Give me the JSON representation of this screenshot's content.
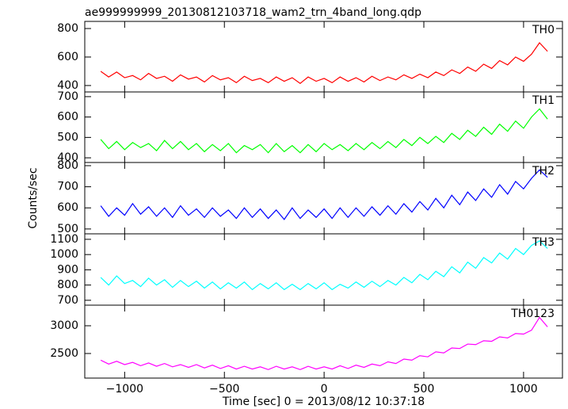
{
  "chart_data": [
    {
      "type": "line",
      "title": "ae999999999_20130812103718_wam2_trn_4band_long.qdp",
      "x": [
        -1120,
        -1080,
        -1040,
        -1000,
        -960,
        -920,
        -880,
        -840,
        -800,
        -760,
        -720,
        -680,
        -640,
        -600,
        -560,
        -520,
        -480,
        -440,
        -400,
        -360,
        -320,
        -280,
        -240,
        -200,
        -160,
        -120,
        -80,
        -40,
        0,
        40,
        80,
        120,
        160,
        200,
        240,
        280,
        320,
        360,
        400,
        440,
        480,
        520,
        560,
        600,
        640,
        680,
        720,
        760,
        800,
        840,
        880,
        920,
        960,
        1000,
        1040,
        1080,
        1120
      ],
      "series": [
        {
          "name": "TH0",
          "color": "#ff0000",
          "values": [
            500,
            460,
            495,
            455,
            470,
            440,
            485,
            450,
            465,
            430,
            475,
            445,
            460,
            425,
            470,
            440,
            455,
            420,
            465,
            435,
            450,
            420,
            460,
            430,
            455,
            415,
            460,
            430,
            450,
            420,
            460,
            430,
            455,
            425,
            465,
            435,
            460,
            440,
            475,
            450,
            480,
            455,
            495,
            470,
            510,
            485,
            530,
            500,
            550,
            520,
            575,
            545,
            600,
            570,
            620,
            700,
            640
          ]
        }
      ],
      "ylim": [
        355,
        850
      ],
      "yticks": [
        400,
        600,
        800
      ]
    },
    {
      "type": "line",
      "x": [
        -1120,
        -1080,
        -1040,
        -1000,
        -960,
        -920,
        -880,
        -840,
        -800,
        -760,
        -720,
        -680,
        -640,
        -600,
        -560,
        -520,
        -480,
        -440,
        -400,
        -360,
        -320,
        -280,
        -240,
        -200,
        -160,
        -120,
        -80,
        -40,
        0,
        40,
        80,
        120,
        160,
        200,
        240,
        280,
        320,
        360,
        400,
        440,
        480,
        520,
        560,
        600,
        640,
        680,
        720,
        760,
        800,
        840,
        880,
        920,
        960,
        1000,
        1040,
        1080,
        1120
      ],
      "series": [
        {
          "name": "TH1",
          "color": "#00ff00",
          "values": [
            490,
            445,
            480,
            440,
            475,
            450,
            470,
            435,
            485,
            445,
            480,
            440,
            470,
            430,
            465,
            435,
            470,
            425,
            460,
            440,
            465,
            425,
            470,
            430,
            460,
            425,
            465,
            430,
            470,
            440,
            465,
            435,
            470,
            440,
            475,
            445,
            480,
            450,
            490,
            460,
            500,
            470,
            505,
            475,
            520,
            490,
            535,
            505,
            550,
            515,
            565,
            530,
            580,
            545,
            600,
            640,
            590
          ]
        }
      ],
      "ylim": [
        377,
        723
      ],
      "yticks": [
        400,
        500,
        600,
        700
      ]
    },
    {
      "type": "line",
      "ylabel": "Counts/sec",
      "x": [
        -1120,
        -1080,
        -1040,
        -1000,
        -960,
        -920,
        -880,
        -840,
        -800,
        -760,
        -720,
        -680,
        -640,
        -600,
        -560,
        -520,
        -480,
        -440,
        -400,
        -360,
        -320,
        -280,
        -240,
        -200,
        -160,
        -120,
        -80,
        -40,
        0,
        40,
        80,
        120,
        160,
        200,
        240,
        280,
        320,
        360,
        400,
        440,
        480,
        520,
        560,
        600,
        640,
        680,
        720,
        760,
        800,
        840,
        880,
        920,
        960,
        1000,
        1040,
        1080,
        1120
      ],
      "series": [
        {
          "name": "TH2",
          "color": "#0000ff",
          "values": [
            610,
            560,
            600,
            565,
            620,
            570,
            605,
            560,
            600,
            555,
            610,
            565,
            595,
            555,
            600,
            560,
            590,
            550,
            600,
            555,
            595,
            550,
            590,
            545,
            600,
            550,
            590,
            555,
            595,
            550,
            600,
            555,
            600,
            560,
            605,
            565,
            610,
            570,
            620,
            580,
            630,
            590,
            645,
            600,
            660,
            615,
            675,
            635,
            690,
            650,
            710,
            665,
            725,
            690,
            740,
            780,
            745
          ]
        }
      ],
      "ylim": [
        477,
        815
      ],
      "yticks": [
        500,
        600,
        700,
        800
      ]
    },
    {
      "type": "line",
      "x": [
        -1120,
        -1080,
        -1040,
        -1000,
        -960,
        -920,
        -880,
        -840,
        -800,
        -760,
        -720,
        -680,
        -640,
        -600,
        -560,
        -520,
        -480,
        -440,
        -400,
        -360,
        -320,
        -280,
        -240,
        -200,
        -160,
        -120,
        -80,
        -40,
        0,
        40,
        80,
        120,
        160,
        200,
        240,
        280,
        320,
        360,
        400,
        440,
        480,
        520,
        560,
        600,
        640,
        680,
        720,
        760,
        800,
        840,
        880,
        920,
        960,
        1000,
        1040,
        1080,
        1120
      ],
      "series": [
        {
          "name": "TH3",
          "color": "#00ffff",
          "values": [
            850,
            800,
            860,
            810,
            830,
            790,
            845,
            800,
            835,
            785,
            830,
            790,
            825,
            780,
            820,
            775,
            815,
            780,
            820,
            770,
            810,
            775,
            815,
            770,
            805,
            770,
            810,
            775,
            815,
            770,
            805,
            780,
            820,
            785,
            825,
            790,
            830,
            800,
            850,
            815,
            870,
            835,
            890,
            855,
            920,
            880,
            950,
            910,
            980,
            945,
            1010,
            970,
            1040,
            1000,
            1060,
            1090,
            1040
          ]
        }
      ],
      "ylim": [
        668,
        1136
      ],
      "yticks": [
        700,
        800,
        900,
        1000,
        1100
      ]
    },
    {
      "type": "line",
      "xlabel": "Time [sec] 0 = 2013/08/12 10:37:18",
      "x": [
        -1120,
        -1080,
        -1040,
        -1000,
        -960,
        -920,
        -880,
        -840,
        -800,
        -760,
        -720,
        -680,
        -640,
        -600,
        -560,
        -520,
        -480,
        -440,
        -400,
        -360,
        -320,
        -280,
        -240,
        -200,
        -160,
        -120,
        -80,
        -40,
        0,
        40,
        80,
        120,
        160,
        200,
        240,
        280,
        320,
        360,
        400,
        440,
        480,
        520,
        560,
        600,
        640,
        680,
        720,
        760,
        800,
        840,
        880,
        920,
        960,
        1000,
        1040,
        1080,
        1120
      ],
      "series": [
        {
          "name": "TH0123",
          "color": "#ff00ff",
          "values": [
            2380,
            2310,
            2360,
            2300,
            2340,
            2280,
            2330,
            2270,
            2320,
            2260,
            2300,
            2250,
            2300,
            2240,
            2290,
            2230,
            2280,
            2220,
            2270,
            2220,
            2260,
            2210,
            2270,
            2220,
            2260,
            2210,
            2270,
            2220,
            2260,
            2220,
            2280,
            2230,
            2290,
            2250,
            2310,
            2280,
            2350,
            2320,
            2400,
            2380,
            2460,
            2440,
            2530,
            2510,
            2600,
            2590,
            2670,
            2660,
            2730,
            2720,
            2800,
            2780,
            2860,
            2850,
            2920,
            3150,
            2980
          ]
        }
      ],
      "ylim": [
        2057,
        3371
      ],
      "yticks": [
        2500,
        3000
      ],
      "xlim": [
        -1200,
        1195
      ],
      "xticks": [
        {
          "value": -1000,
          "label": "−1000"
        },
        {
          "value": -500,
          "label": "−500"
        },
        0,
        500,
        1000
      ]
    }
  ]
}
